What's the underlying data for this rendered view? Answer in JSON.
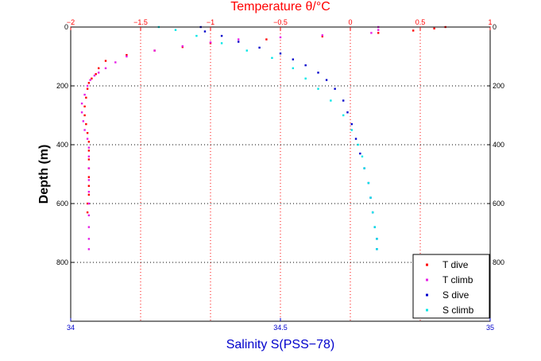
{
  "chart_data": {
    "type": "scatter",
    "title": "Temperature θ/°C",
    "xlabel_top": "Temperature θ/°C",
    "xlabel_bottom": "Salinity S(PSS−78)",
    "ylabel": "Depth (m)",
    "y_axis": {
      "label": "Depth (m)",
      "lim": [
        0,
        1000
      ],
      "reversed": true,
      "ticks": [
        0,
        200,
        400,
        600,
        800
      ],
      "tick_labels": [
        "0",
        "200",
        "400",
        "600",
        "800"
      ]
    },
    "x_top_axis": {
      "label": "Temperature θ/°C",
      "lim": [
        -2,
        1
      ],
      "color": "#ff0000",
      "ticks": [
        -2,
        -1.5,
        -1,
        -0.5,
        0,
        0.5,
        1
      ],
      "tick_labels": [
        "−2",
        "−1.5",
        "−1",
        "−0.5",
        "0",
        "0.5",
        "1"
      ]
    },
    "x_bottom_axis": {
      "label": "Salinity S(PSS−78)",
      "lim": [
        34,
        35
      ],
      "color": "#0000cc",
      "ticks": [
        34,
        34.5,
        35
      ],
      "tick_labels": [
        "34",
        "34.5",
        "35"
      ]
    },
    "grid": true,
    "legend": {
      "placement": "bottom-right"
    },
    "series": [
      {
        "name": "T dive",
        "axis": "temperature",
        "color": "#ff0000",
        "points": [
          [
            0.68,
            0
          ],
          [
            0.6,
            5
          ],
          [
            0.45,
            12
          ],
          [
            0.2,
            20
          ],
          [
            -0.2,
            32
          ],
          [
            -0.6,
            42
          ],
          [
            -1.0,
            55
          ],
          [
            -1.2,
            68
          ],
          [
            -1.4,
            80
          ],
          [
            -1.6,
            95
          ],
          [
            -1.75,
            115
          ],
          [
            -1.8,
            140
          ],
          [
            -1.82,
            160
          ],
          [
            -1.85,
            175
          ],
          [
            -1.87,
            190
          ],
          [
            -1.88,
            210
          ],
          [
            -1.89,
            240
          ],
          [
            -1.9,
            270
          ],
          [
            -1.9,
            300
          ],
          [
            -1.89,
            330
          ],
          [
            -1.88,
            360
          ],
          [
            -1.87,
            390
          ],
          [
            -1.87,
            420
          ],
          [
            -1.87,
            450
          ],
          [
            -1.87,
            480
          ],
          [
            -1.87,
            510
          ],
          [
            -1.87,
            540
          ],
          [
            -1.87,
            570
          ],
          [
            -1.88,
            600
          ],
          [
            -1.88,
            630
          ]
        ]
      },
      {
        "name": "T climb",
        "axis": "temperature",
        "color": "#e61ee6",
        "points": [
          [
            0.2,
            0
          ],
          [
            0.2,
            10
          ],
          [
            0.15,
            20
          ],
          [
            -0.2,
            28
          ],
          [
            -0.5,
            35
          ],
          [
            -0.8,
            42
          ],
          [
            -1.0,
            52
          ],
          [
            -1.2,
            65
          ],
          [
            -1.4,
            80
          ],
          [
            -1.6,
            100
          ],
          [
            -1.68,
            120
          ],
          [
            -1.75,
            140
          ],
          [
            -1.8,
            155
          ],
          [
            -1.83,
            165
          ],
          [
            -1.86,
            180
          ],
          [
            -1.88,
            200
          ],
          [
            -1.9,
            230
          ],
          [
            -1.92,
            260
          ],
          [
            -1.92,
            290
          ],
          [
            -1.91,
            320
          ],
          [
            -1.9,
            350
          ],
          [
            -1.88,
            380
          ],
          [
            -1.87,
            410
          ],
          [
            -1.87,
            440
          ],
          [
            -1.87,
            480
          ],
          [
            -1.87,
            520
          ],
          [
            -1.87,
            560
          ],
          [
            -1.87,
            600
          ],
          [
            -1.87,
            640
          ],
          [
            -1.87,
            680
          ],
          [
            -1.87,
            720
          ],
          [
            -1.87,
            755
          ]
        ]
      },
      {
        "name": "S dive",
        "axis": "salinity",
        "color": "#0000cc",
        "points": [
          [
            34.31,
            0
          ],
          [
            34.32,
            15
          ],
          [
            34.36,
            30
          ],
          [
            34.4,
            50
          ],
          [
            34.45,
            70
          ],
          [
            34.5,
            90
          ],
          [
            34.53,
            110
          ],
          [
            34.56,
            130
          ],
          [
            34.59,
            155
          ],
          [
            34.61,
            180
          ],
          [
            34.63,
            210
          ],
          [
            34.65,
            250
          ],
          [
            34.66,
            290
          ],
          [
            34.67,
            330
          ],
          [
            34.68,
            380
          ],
          [
            34.69,
            430
          ],
          [
            34.7,
            480
          ],
          [
            34.71,
            530
          ],
          [
            34.715,
            580
          ],
          [
            34.72,
            630
          ],
          [
            34.725,
            680
          ],
          [
            34.73,
            720
          ],
          [
            34.73,
            755
          ]
        ]
      },
      {
        "name": "S climb",
        "axis": "salinity",
        "color": "#00e6e6",
        "points": [
          [
            34.21,
            0
          ],
          [
            34.25,
            10
          ],
          [
            34.3,
            30
          ],
          [
            34.36,
            55
          ],
          [
            34.42,
            80
          ],
          [
            34.48,
            105
          ],
          [
            34.53,
            140
          ],
          [
            34.56,
            175
          ],
          [
            34.59,
            210
          ],
          [
            34.62,
            250
          ],
          [
            34.65,
            300
          ],
          [
            34.67,
            350
          ],
          [
            34.685,
            400
          ],
          [
            34.695,
            440
          ],
          [
            34.7,
            480
          ],
          [
            34.71,
            530
          ],
          [
            34.715,
            580
          ],
          [
            34.72,
            630
          ],
          [
            34.725,
            680
          ],
          [
            34.73,
            720
          ],
          [
            34.73,
            755
          ]
        ]
      }
    ]
  }
}
